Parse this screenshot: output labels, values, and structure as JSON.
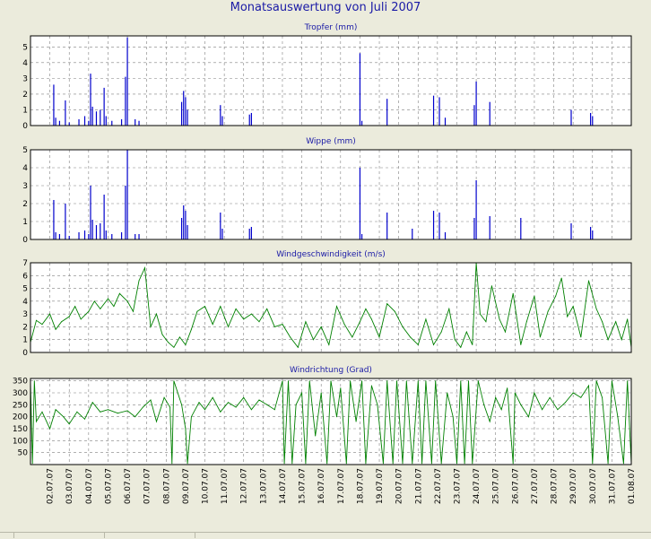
{
  "title": "Monatsauswertung von Juli 2007",
  "colors": {
    "rain": "#0000cc",
    "wind": "#008000",
    "background": "#ebebdc",
    "plot_bg": "#ffffff",
    "grid": "#808080"
  },
  "chart_data": [
    {
      "type": "bar",
      "title": "Tropfer (mm)",
      "ylim": [
        0,
        5.7
      ],
      "yticks": [
        0,
        1,
        2,
        3,
        4,
        5
      ],
      "grid": true,
      "x_range": [
        1,
        32
      ],
      "spikes": [
        [
          2.2,
          2.6
        ],
        [
          2.3,
          0.5
        ],
        [
          2.5,
          0.3
        ],
        [
          2.8,
          1.6
        ],
        [
          3.0,
          0.2
        ],
        [
          3.5,
          0.4
        ],
        [
          3.8,
          0.6
        ],
        [
          4.0,
          0.3
        ],
        [
          4.1,
          3.3
        ],
        [
          4.2,
          1.2
        ],
        [
          4.4,
          0.9
        ],
        [
          4.6,
          1.0
        ],
        [
          4.8,
          2.4
        ],
        [
          4.9,
          0.6
        ],
        [
          5.2,
          0.3
        ],
        [
          5.7,
          0.4
        ],
        [
          5.9,
          3.1
        ],
        [
          6.0,
          5.6
        ],
        [
          6.4,
          0.4
        ],
        [
          6.6,
          0.3
        ],
        [
          8.8,
          1.5
        ],
        [
          8.9,
          2.2
        ],
        [
          9.0,
          1.8
        ],
        [
          9.1,
          1.0
        ],
        [
          10.8,
          1.3
        ],
        [
          10.9,
          0.6
        ],
        [
          12.3,
          0.7
        ],
        [
          12.4,
          0.8
        ],
        [
          18.0,
          4.6
        ],
        [
          18.1,
          0.3
        ],
        [
          19.4,
          1.7
        ],
        [
          21.8,
          1.9
        ],
        [
          22.1,
          1.8
        ],
        [
          22.4,
          0.5
        ],
        [
          23.9,
          1.3
        ],
        [
          24.0,
          2.8
        ],
        [
          24.7,
          1.5
        ],
        [
          28.9,
          1.0
        ],
        [
          29.9,
          0.8
        ],
        [
          30.0,
          0.6
        ]
      ]
    },
    {
      "type": "bar",
      "title": "Wippe (mm)",
      "ylim": [
        0,
        5
      ],
      "yticks": [
        0,
        1,
        2,
        3,
        4,
        5
      ],
      "grid": true,
      "x_range": [
        1,
        32
      ],
      "spikes": [
        [
          2.2,
          2.2
        ],
        [
          2.3,
          0.4
        ],
        [
          2.5,
          0.3
        ],
        [
          2.8,
          2.0
        ],
        [
          3.0,
          0.2
        ],
        [
          3.5,
          0.4
        ],
        [
          3.8,
          0.5
        ],
        [
          4.0,
          0.3
        ],
        [
          4.1,
          3.0
        ],
        [
          4.2,
          1.1
        ],
        [
          4.4,
          0.8
        ],
        [
          4.6,
          0.9
        ],
        [
          4.8,
          2.5
        ],
        [
          4.9,
          0.5
        ],
        [
          5.2,
          0.3
        ],
        [
          5.7,
          0.4
        ],
        [
          5.9,
          3.0
        ],
        [
          6.0,
          5.0
        ],
        [
          6.4,
          0.3
        ],
        [
          6.6,
          0.3
        ],
        [
          8.8,
          1.2
        ],
        [
          8.9,
          1.9
        ],
        [
          9.0,
          1.6
        ],
        [
          9.1,
          0.8
        ],
        [
          10.8,
          1.5
        ],
        [
          10.9,
          0.6
        ],
        [
          12.3,
          0.6
        ],
        [
          12.4,
          0.7
        ],
        [
          18.0,
          4.0
        ],
        [
          18.1,
          0.3
        ],
        [
          19.4,
          1.5
        ],
        [
          20.7,
          0.6
        ],
        [
          21.8,
          1.6
        ],
        [
          22.1,
          1.5
        ],
        [
          22.4,
          0.4
        ],
        [
          23.9,
          1.2
        ],
        [
          24.0,
          3.3
        ],
        [
          24.7,
          1.3
        ],
        [
          26.3,
          1.2
        ],
        [
          28.9,
          0.9
        ],
        [
          29.9,
          0.7
        ],
        [
          30.0,
          0.5
        ]
      ]
    },
    {
      "type": "line",
      "title": "Windgeschwindigkeit (m/s)",
      "ylim": [
        0,
        7
      ],
      "yticks": [
        0,
        1,
        2,
        3,
        4,
        5,
        6,
        7
      ],
      "grid": true,
      "x_range": [
        1,
        32
      ],
      "points": [
        [
          1.0,
          0.8
        ],
        [
          1.3,
          2.5
        ],
        [
          1.6,
          2.2
        ],
        [
          2.0,
          3.0
        ],
        [
          2.3,
          1.8
        ],
        [
          2.6,
          2.4
        ],
        [
          3.0,
          2.8
        ],
        [
          3.3,
          3.6
        ],
        [
          3.6,
          2.6
        ],
        [
          4.0,
          3.2
        ],
        [
          4.3,
          4.0
        ],
        [
          4.6,
          3.4
        ],
        [
          5.0,
          4.2
        ],
        [
          5.3,
          3.6
        ],
        [
          5.6,
          4.6
        ],
        [
          6.0,
          4.0
        ],
        [
          6.3,
          3.2
        ],
        [
          6.6,
          5.6
        ],
        [
          6.9,
          6.6
        ],
        [
          7.2,
          2.0
        ],
        [
          7.5,
          3.0
        ],
        [
          7.8,
          1.4
        ],
        [
          8.1,
          0.8
        ],
        [
          8.4,
          0.4
        ],
        [
          8.7,
          1.2
        ],
        [
          9.0,
          0.6
        ],
        [
          9.3,
          1.8
        ],
        [
          9.6,
          3.2
        ],
        [
          10.0,
          3.6
        ],
        [
          10.4,
          2.2
        ],
        [
          10.8,
          3.6
        ],
        [
          11.2,
          2.0
        ],
        [
          11.6,
          3.4
        ],
        [
          12.0,
          2.6
        ],
        [
          12.4,
          3.0
        ],
        [
          12.8,
          2.4
        ],
        [
          13.2,
          3.4
        ],
        [
          13.6,
          2.0
        ],
        [
          14.0,
          2.2
        ],
        [
          14.4,
          1.2
        ],
        [
          14.8,
          0.4
        ],
        [
          15.2,
          2.4
        ],
        [
          15.6,
          1.0
        ],
        [
          16.0,
          2.0
        ],
        [
          16.4,
          0.6
        ],
        [
          16.8,
          3.6
        ],
        [
          17.2,
          2.2
        ],
        [
          17.6,
          1.2
        ],
        [
          18.0,
          2.4
        ],
        [
          18.3,
          3.4
        ],
        [
          18.6,
          2.6
        ],
        [
          19.0,
          1.2
        ],
        [
          19.4,
          3.8
        ],
        [
          19.8,
          3.2
        ],
        [
          20.2,
          2.0
        ],
        [
          20.6,
          1.2
        ],
        [
          21.0,
          0.6
        ],
        [
          21.4,
          2.6
        ],
        [
          21.8,
          0.6
        ],
        [
          22.2,
          1.6
        ],
        [
          22.6,
          3.4
        ],
        [
          22.9,
          1.0
        ],
        [
          23.2,
          0.4
        ],
        [
          23.5,
          1.6
        ],
        [
          23.8,
          0.6
        ],
        [
          24.0,
          7.0
        ],
        [
          24.2,
          3.0
        ],
        [
          24.5,
          2.4
        ],
        [
          24.8,
          5.2
        ],
        [
          25.2,
          2.6
        ],
        [
          25.5,
          1.6
        ],
        [
          25.9,
          4.6
        ],
        [
          26.3,
          0.6
        ],
        [
          26.6,
          2.4
        ],
        [
          27.0,
          4.4
        ],
        [
          27.3,
          1.2
        ],
        [
          27.7,
          3.2
        ],
        [
          28.1,
          4.4
        ],
        [
          28.4,
          5.8
        ],
        [
          28.7,
          2.8
        ],
        [
          29.0,
          3.6
        ],
        [
          29.4,
          1.2
        ],
        [
          29.8,
          5.6
        ],
        [
          30.2,
          3.4
        ],
        [
          30.5,
          2.4
        ],
        [
          30.8,
          1.0
        ],
        [
          31.2,
          2.4
        ],
        [
          31.5,
          1.0
        ],
        [
          31.8,
          2.6
        ],
        [
          32.0,
          0.4
        ]
      ]
    },
    {
      "type": "line",
      "title": "Windrichtung (Grad)",
      "ylim": [
        0,
        360
      ],
      "yticks": [
        50,
        100,
        150,
        200,
        250,
        300,
        350
      ],
      "grid": true,
      "x_range": [
        1,
        32
      ],
      "points": [
        [
          1.0,
          350
        ],
        [
          1.1,
          5
        ],
        [
          1.2,
          350
        ],
        [
          1.3,
          180
        ],
        [
          1.6,
          220
        ],
        [
          2.0,
          150
        ],
        [
          2.3,
          230
        ],
        [
          2.7,
          200
        ],
        [
          3.0,
          170
        ],
        [
          3.4,
          220
        ],
        [
          3.8,
          190
        ],
        [
          4.2,
          260
        ],
        [
          4.6,
          220
        ],
        [
          5.0,
          230
        ],
        [
          5.5,
          215
        ],
        [
          6.0,
          225
        ],
        [
          6.4,
          200
        ],
        [
          6.8,
          240
        ],
        [
          7.2,
          270
        ],
        [
          7.5,
          180
        ],
        [
          7.9,
          280
        ],
        [
          8.2,
          240
        ],
        [
          8.3,
          5
        ],
        [
          8.4,
          350
        ],
        [
          8.8,
          250
        ],
        [
          9.0,
          150
        ],
        [
          9.1,
          5
        ],
        [
          9.3,
          200
        ],
        [
          9.7,
          260
        ],
        [
          10.0,
          230
        ],
        [
          10.4,
          280
        ],
        [
          10.8,
          220
        ],
        [
          11.2,
          260
        ],
        [
          11.6,
          240
        ],
        [
          12.0,
          280
        ],
        [
          12.4,
          230
        ],
        [
          12.8,
          270
        ],
        [
          13.2,
          250
        ],
        [
          13.6,
          230
        ],
        [
          14.0,
          350
        ],
        [
          14.1,
          5
        ],
        [
          14.3,
          350
        ],
        [
          14.5,
          5
        ],
        [
          14.7,
          250
        ],
        [
          15.0,
          300
        ],
        [
          15.2,
          5
        ],
        [
          15.4,
          350
        ],
        [
          15.7,
          120
        ],
        [
          16.0,
          300
        ],
        [
          16.3,
          5
        ],
        [
          16.5,
          350
        ],
        [
          16.8,
          200
        ],
        [
          17.0,
          320
        ],
        [
          17.3,
          5
        ],
        [
          17.5,
          350
        ],
        [
          17.8,
          180
        ],
        [
          18.1,
          350
        ],
        [
          18.3,
          5
        ],
        [
          18.6,
          330
        ],
        [
          18.9,
          250
        ],
        [
          19.2,
          5
        ],
        [
          19.4,
          350
        ],
        [
          19.7,
          5
        ],
        [
          19.9,
          350
        ],
        [
          20.2,
          5
        ],
        [
          20.4,
          350
        ],
        [
          20.7,
          5
        ],
        [
          21.0,
          350
        ],
        [
          21.2,
          5
        ],
        [
          21.4,
          350
        ],
        [
          21.7,
          5
        ],
        [
          21.9,
          350
        ],
        [
          22.2,
          5
        ],
        [
          22.5,
          300
        ],
        [
          22.8,
          200
        ],
        [
          23.0,
          5
        ],
        [
          23.2,
          350
        ],
        [
          23.4,
          5
        ],
        [
          23.6,
          350
        ],
        [
          23.8,
          5
        ],
        [
          24.1,
          350
        ],
        [
          24.4,
          250
        ],
        [
          24.7,
          180
        ],
        [
          25.0,
          280
        ],
        [
          25.3,
          230
        ],
        [
          25.6,
          320
        ],
        [
          25.9,
          5
        ],
        [
          26.0,
          300
        ],
        [
          26.3,
          250
        ],
        [
          26.7,
          200
        ],
        [
          27.0,
          300
        ],
        [
          27.4,
          230
        ],
        [
          27.8,
          280
        ],
        [
          28.2,
          230
        ],
        [
          28.6,
          260
        ],
        [
          29.0,
          300
        ],
        [
          29.4,
          280
        ],
        [
          29.8,
          330
        ],
        [
          30.0,
          5
        ],
        [
          30.2,
          350
        ],
        [
          30.5,
          280
        ],
        [
          30.8,
          5
        ],
        [
          31.0,
          350
        ],
        [
          31.3,
          200
        ],
        [
          31.6,
          5
        ],
        [
          31.8,
          350
        ],
        [
          32.0,
          5
        ]
      ]
    }
  ],
  "x_ticks": [
    "02.07.07",
    "03.07.07",
    "04.07.07",
    "05.07.07",
    "06.07.07",
    "07.07.07",
    "08.07.07",
    "09.07.07",
    "10.07.07",
    "11.07.07",
    "12.07.07",
    "13.07.07",
    "14.07.07",
    "15.07.07",
    "16.07.07",
    "17.07.07",
    "18.07.07",
    "19.07.07",
    "20.07.07",
    "21.07.07",
    "22.07.07",
    "23.07.07",
    "24.07.07",
    "25.07.07",
    "26.07.07",
    "27.07.07",
    "28.07.07",
    "29.07.07",
    "30.07.07",
    "31.07.07",
    "01.08.07"
  ]
}
